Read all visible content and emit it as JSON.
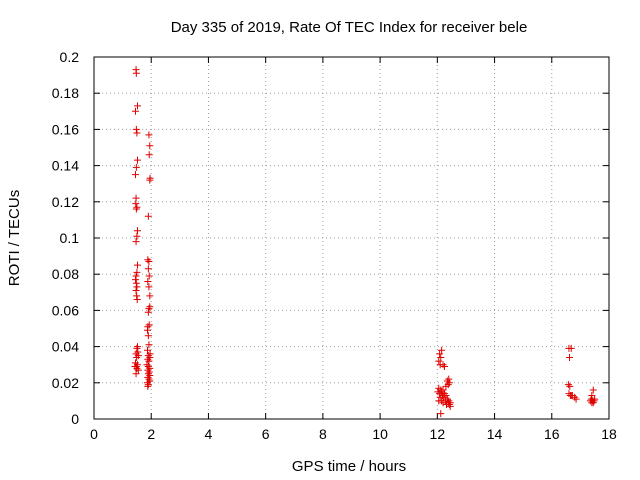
{
  "chart_data": {
    "type": "scatter",
    "title": "Day 335 of 2019, Rate Of TEC Index for receiver bele",
    "xlabel": "GPS time / hours",
    "ylabel": "ROTI / TECUs",
    "xlim": [
      0,
      18
    ],
    "ylim": [
      0,
      0.2
    ],
    "x_ticks": [
      0,
      2,
      4,
      6,
      8,
      10,
      12,
      14,
      16,
      18
    ],
    "x_tick_labels": [
      "0",
      "2",
      "4",
      "6",
      "8",
      "10",
      "12",
      "14",
      "16",
      "18"
    ],
    "y_ticks": [
      0,
      0.02,
      0.04,
      0.06,
      0.08,
      0.1,
      0.12,
      0.14,
      0.16,
      0.18,
      0.2
    ],
    "y_tick_labels": [
      "0",
      "0.02",
      "0.04",
      "0.06",
      "0.08",
      "0.1",
      "0.12",
      "0.14",
      "0.16",
      "0.18",
      "0.2"
    ],
    "grid": true,
    "marker": "+",
    "marker_color": "#e00000",
    "series": [
      {
        "name": "ROTI",
        "points": [
          [
            1.47,
            0.193
          ],
          [
            1.48,
            0.191
          ],
          [
            1.52,
            0.173
          ],
          [
            1.45,
            0.17
          ],
          [
            1.48,
            0.16
          ],
          [
            1.5,
            0.158
          ],
          [
            1.52,
            0.143
          ],
          [
            1.48,
            0.139
          ],
          [
            1.45,
            0.135
          ],
          [
            1.47,
            0.122
          ],
          [
            1.46,
            0.119
          ],
          [
            1.5,
            0.117
          ],
          [
            1.48,
            0.116
          ],
          [
            1.52,
            0.104
          ],
          [
            1.5,
            0.101
          ],
          [
            1.47,
            0.098
          ],
          [
            1.52,
            0.085
          ],
          [
            1.5,
            0.081
          ],
          [
            1.47,
            0.079
          ],
          [
            1.45,
            0.077
          ],
          [
            1.48,
            0.075
          ],
          [
            1.5,
            0.073
          ],
          [
            1.47,
            0.071
          ],
          [
            1.49,
            0.068
          ],
          [
            1.51,
            0.066
          ],
          [
            1.52,
            0.04
          ],
          [
            1.5,
            0.039
          ],
          [
            1.53,
            0.037
          ],
          [
            1.47,
            0.036
          ],
          [
            1.55,
            0.035
          ],
          [
            1.49,
            0.034
          ],
          [
            1.45,
            0.031
          ],
          [
            1.52,
            0.03
          ],
          [
            1.48,
            0.029
          ],
          [
            1.43,
            0.029
          ],
          [
            1.5,
            0.028
          ],
          [
            1.55,
            0.027
          ],
          [
            1.47,
            0.025
          ],
          [
            1.92,
            0.157
          ],
          [
            1.95,
            0.151
          ],
          [
            1.93,
            0.146
          ],
          [
            1.96,
            0.133
          ],
          [
            1.95,
            0.132
          ],
          [
            1.9,
            0.112
          ],
          [
            1.88,
            0.088
          ],
          [
            1.92,
            0.087
          ],
          [
            1.9,
            0.083
          ],
          [
            1.93,
            0.079
          ],
          [
            1.88,
            0.076
          ],
          [
            1.92,
            0.073
          ],
          [
            1.95,
            0.068
          ],
          [
            1.95,
            0.062
          ],
          [
            1.92,
            0.061
          ],
          [
            1.9,
            0.059
          ],
          [
            1.93,
            0.052
          ],
          [
            1.88,
            0.051
          ],
          [
            1.87,
            0.049
          ],
          [
            1.9,
            0.046
          ],
          [
            1.92,
            0.041
          ],
          [
            1.87,
            0.038
          ],
          [
            1.96,
            0.036
          ],
          [
            1.9,
            0.035
          ],
          [
            1.95,
            0.034
          ],
          [
            1.88,
            0.033
          ],
          [
            1.92,
            0.032
          ],
          [
            1.85,
            0.03
          ],
          [
            1.9,
            0.029
          ],
          [
            1.95,
            0.028
          ],
          [
            1.88,
            0.027
          ],
          [
            1.93,
            0.026
          ],
          [
            1.9,
            0.025
          ],
          [
            1.95,
            0.024
          ],
          [
            1.88,
            0.023
          ],
          [
            1.92,
            0.022
          ],
          [
            1.95,
            0.021
          ],
          [
            1.87,
            0.02
          ],
          [
            1.9,
            0.019
          ],
          [
            1.88,
            0.018
          ],
          [
            12.08,
            0.036
          ],
          [
            12.15,
            0.038
          ],
          [
            12.12,
            0.034
          ],
          [
            12.05,
            0.032
          ],
          [
            12.2,
            0.03
          ],
          [
            12.25,
            0.029
          ],
          [
            12.1,
            0.03
          ],
          [
            12.4,
            0.022
          ],
          [
            12.35,
            0.021
          ],
          [
            12.42,
            0.02
          ],
          [
            12.38,
            0.019
          ],
          [
            12.3,
            0.018
          ],
          [
            12.05,
            0.017
          ],
          [
            12.12,
            0.016
          ],
          [
            12.2,
            0.016
          ],
          [
            12.02,
            0.015
          ],
          [
            12.15,
            0.015
          ],
          [
            12.25,
            0.014
          ],
          [
            12.08,
            0.014
          ],
          [
            12.18,
            0.013
          ],
          [
            12.3,
            0.013
          ],
          [
            12.1,
            0.012
          ],
          [
            12.22,
            0.012
          ],
          [
            12.35,
            0.011
          ],
          [
            12.05,
            0.01
          ],
          [
            12.15,
            0.01
          ],
          [
            12.28,
            0.01
          ],
          [
            12.4,
            0.01
          ],
          [
            12.45,
            0.009
          ],
          [
            12.38,
            0.009
          ],
          [
            12.2,
            0.009
          ],
          [
            12.32,
            0.008
          ],
          [
            12.42,
            0.008
          ],
          [
            12.45,
            0.007
          ],
          [
            12.12,
            0.003
          ],
          [
            16.6,
            0.039
          ],
          [
            16.68,
            0.039
          ],
          [
            16.62,
            0.034
          ],
          [
            16.58,
            0.019
          ],
          [
            16.63,
            0.018
          ],
          [
            16.6,
            0.014
          ],
          [
            16.68,
            0.013
          ],
          [
            16.72,
            0.013
          ],
          [
            16.65,
            0.013
          ],
          [
            16.8,
            0.012
          ],
          [
            16.85,
            0.011
          ],
          [
            17.45,
            0.016
          ],
          [
            17.4,
            0.013
          ],
          [
            17.5,
            0.011
          ],
          [
            17.38,
            0.011
          ],
          [
            17.42,
            0.01
          ],
          [
            17.48,
            0.01
          ],
          [
            17.45,
            0.009
          ],
          [
            17.4,
            0.009
          ],
          [
            17.35,
            0.01
          ]
        ]
      }
    ]
  }
}
